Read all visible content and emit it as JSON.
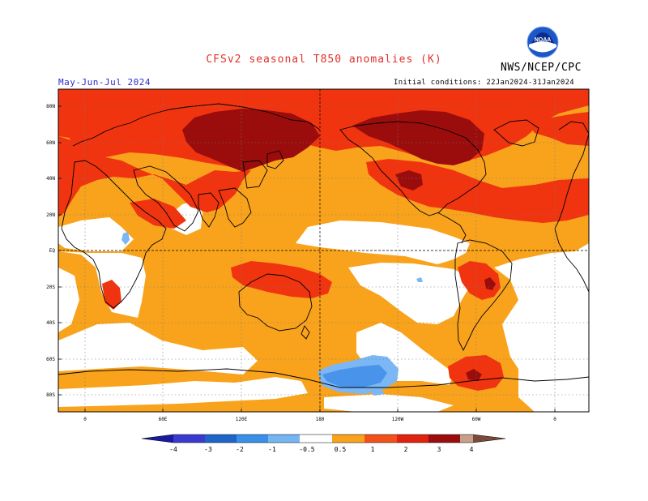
{
  "header": {
    "title": "CFSv2 seasonal T850 anomalies (K)",
    "org": "NWS/NCEP/CPC",
    "logo_text": "NOAA",
    "season": "May-Jun-Jul 2024",
    "initial_conditions": "Initial conditions: 22Jan2024-31Jan2024"
  },
  "map": {
    "lat_labels": [
      "80N",
      "60N",
      "40N",
      "20N",
      "EQ",
      "20S",
      "40S",
      "60S",
      "80S"
    ],
    "lon_labels": [
      "0",
      "60E",
      "120E",
      "180",
      "120W",
      "60W",
      "0"
    ],
    "colors": {
      "c05": "#f9a31c",
      "c1": "#fa5a1b",
      "c2": "#f03410",
      "c3": "#9b0d0d",
      "cn05": "#7ab7f4",
      "cn1": "#4993eb"
    }
  },
  "colorbar": {
    "labels": [
      "-4",
      "-3",
      "-2",
      "-1",
      "-0.5",
      "0.5",
      "1",
      "2",
      "3",
      "4"
    ],
    "colors": [
      "#1a1aa0",
      "#3a3ad0",
      "#1f65c8",
      "#3a8fe8",
      "#74b6f4",
      "#ffffff",
      "#f9a31c",
      "#f2521a",
      "#e0220e",
      "#9b0d0d",
      "#c8a08a",
      "#7a4a3a"
    ]
  }
}
